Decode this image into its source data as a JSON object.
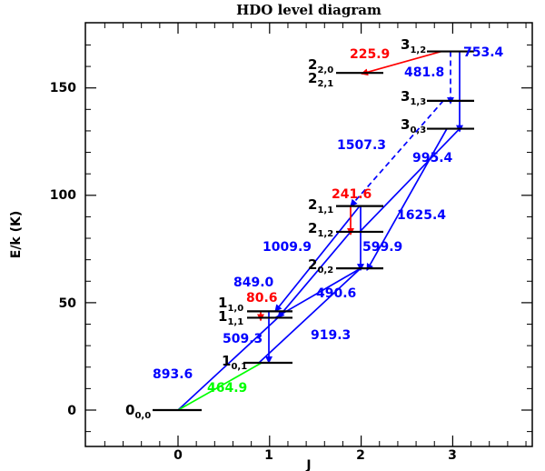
{
  "chart_data": {
    "type": "diagram",
    "title": "HDO level diagram",
    "xlabel": "J",
    "ylabel": "E/k (K)",
    "xlim": [
      -1,
      4
    ],
    "ylim": [
      -10,
      180
    ],
    "xticks": [
      "0",
      "1",
      "2",
      "3"
    ],
    "yticks": [
      "0",
      "50",
      "100",
      "150"
    ],
    "colors": {
      "blue": "#0000ff",
      "red": "#ff0000",
      "green": "#00ff00",
      "black": "#000000"
    },
    "levels": [
      {
        "id": "000",
        "J": 0,
        "E": 0,
        "main": "0",
        "sub": "0,0"
      },
      {
        "id": "101",
        "J": 1,
        "E": 22,
        "main": "1",
        "sub": "0,1"
      },
      {
        "id": "111",
        "J": 1,
        "E": 43,
        "main": "1",
        "sub": "1,1"
      },
      {
        "id": "110",
        "J": 1,
        "E": 46,
        "main": "1",
        "sub": "1,0"
      },
      {
        "id": "202",
        "J": 2,
        "E": 66,
        "main": "2",
        "sub": "0,2"
      },
      {
        "id": "212",
        "J": 2,
        "E": 83,
        "main": "2",
        "sub": "1,2"
      },
      {
        "id": "211",
        "J": 2,
        "E": 95,
        "main": "2",
        "sub": "1,1"
      },
      {
        "id": "221",
        "J": 2,
        "E": 157,
        "main": "2",
        "sub": "2,1"
      },
      {
        "id": "220",
        "J": 2,
        "E": 157,
        "main": "2",
        "sub": "2,0"
      },
      {
        "id": "303",
        "J": 3,
        "E": 131,
        "main": "3",
        "sub": "0,3"
      },
      {
        "id": "313",
        "J": 3,
        "E": 144,
        "main": "3",
        "sub": "1,3"
      },
      {
        "id": "312",
        "J": 3,
        "E": 167,
        "main": "3",
        "sub": "1,2"
      }
    ],
    "transitions": [
      {
        "label": "893.6",
        "color": "blue",
        "style": "solid",
        "from": "000",
        "to": "111"
      },
      {
        "label": "464.9",
        "color": "green",
        "style": "solid",
        "from": "000",
        "to": "101"
      },
      {
        "label": "80.6",
        "color": "red",
        "style": "solid",
        "from": "110",
        "to": "111"
      },
      {
        "label": "509.3",
        "color": "blue",
        "style": "solid",
        "from": "110",
        "to": "101"
      },
      {
        "label": "849.0",
        "color": "blue",
        "style": "solid",
        "from": "212",
        "to": "111"
      },
      {
        "label": "1009.9",
        "color": "blue",
        "style": "solid",
        "from": "211",
        "to": "110"
      },
      {
        "label": "490.6",
        "color": "blue",
        "style": "solid",
        "from": "202",
        "to": "111"
      },
      {
        "label": "919.3",
        "color": "blue",
        "style": "solid",
        "from": "202",
        "to": "101"
      },
      {
        "label": "241.6",
        "color": "red",
        "style": "solid",
        "from": "211",
        "to": "212"
      },
      {
        "label": "599.9",
        "color": "blue",
        "style": "solid",
        "from": "211",
        "to": "202"
      },
      {
        "label": "1625.4",
        "color": "blue",
        "style": "solid",
        "from": "303",
        "to": "202"
      },
      {
        "label": "995.4",
        "color": "blue",
        "style": "solid",
        "from": "303",
        "to": "212"
      },
      {
        "label": "1507.3",
        "color": "blue",
        "style": "dashed",
        "from": "313",
        "to": "211"
      },
      {
        "label": "481.8",
        "color": "blue",
        "style": "dashed",
        "from": "312",
        "to": "313"
      },
      {
        "label": "753.4",
        "color": "blue",
        "style": "solid",
        "from": "312",
        "to": "303"
      },
      {
        "label": "225.9",
        "color": "red",
        "style": "solid",
        "from": "312",
        "to": "220"
      }
    ]
  }
}
